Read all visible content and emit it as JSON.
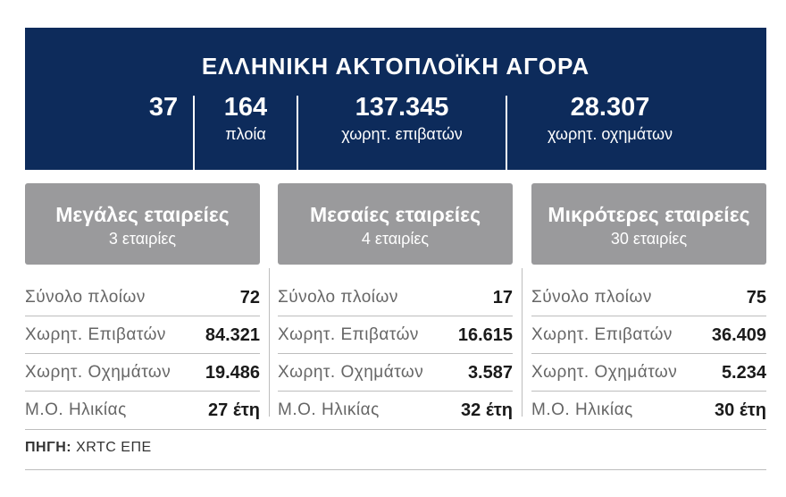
{
  "banner": {
    "title": "ΕΛΛΗΝΙΚΗ ΑΚΤΟΠΛΟΪΚΗ ΑΓΟΡΑ",
    "stats": [
      {
        "value": "37",
        "label": ""
      },
      {
        "value": "164",
        "label": "πλοία"
      },
      {
        "value": "137.345",
        "label": "χωρητ. επιβατών"
      },
      {
        "value": "28.307",
        "label": "χωρητ. οχημάτων"
      }
    ]
  },
  "categories": [
    {
      "title": "Μεγάλες εταιρείες",
      "subtitle": "3 εταιρίες",
      "rows": [
        {
          "label": "Σύνολο πλοίων",
          "value": "72"
        },
        {
          "label": "Χωρητ. Επιβατών",
          "value": "84.321"
        },
        {
          "label": "Χωρητ. Οχημάτων",
          "value": "19.486"
        },
        {
          "label": "Μ.Ο. Ηλικίας",
          "value": "27 έτη"
        }
      ]
    },
    {
      "title": "Μεσαίες εταιρείες",
      "subtitle": "4 εταιρίες",
      "rows": [
        {
          "label": "Σύνολο πλοίων",
          "value": "17"
        },
        {
          "label": "Χωρητ. Επιβατών",
          "value": "16.615"
        },
        {
          "label": "Χωρητ. Οχημάτων",
          "value": "3.587"
        },
        {
          "label": "Μ.Ο. Ηλικίας",
          "value": "32 έτη"
        }
      ]
    },
    {
      "title": "Μικρότερες εταιρείες",
      "subtitle": "30 εταιρίες",
      "rows": [
        {
          "label": "Σύνολο πλοίων",
          "value": "75"
        },
        {
          "label": "Χωρητ. Επιβατών",
          "value": "36.409"
        },
        {
          "label": "Χωρητ. Οχημάτων",
          "value": "5.234"
        },
        {
          "label": "Μ.Ο. Ηλικίας",
          "value": "30 έτη"
        }
      ]
    }
  ],
  "source": {
    "label": "ΠΗΓΗ:",
    "text": "XRTC ΕΠΕ"
  }
}
